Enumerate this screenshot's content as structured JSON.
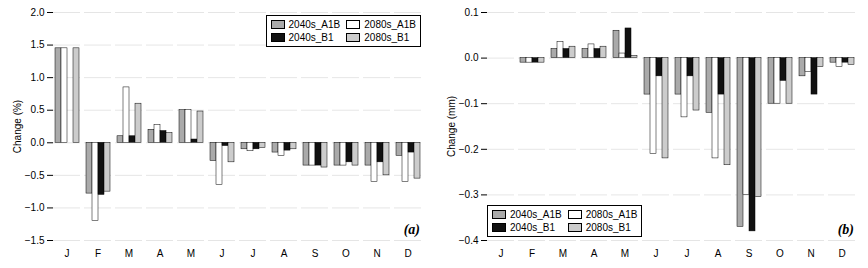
{
  "chart_data": [
    {
      "type": "bar",
      "ylabel": "Change (%)",
      "categories": [
        "J",
        "F",
        "M",
        "A",
        "M",
        "J",
        "J",
        "A",
        "S",
        "O",
        "N",
        "D"
      ],
      "series": [
        {
          "name": "2040s_A1B",
          "color": "#aaaaaa",
          "values": [
            1.45,
            -0.78,
            0.1,
            0.2,
            0.5,
            -0.28,
            -0.1,
            -0.15,
            -0.35,
            -0.35,
            -0.35,
            -0.2
          ]
        },
        {
          "name": "2080s_A1B",
          "color": "#ffffff",
          "values": [
            1.45,
            -1.2,
            0.85,
            0.27,
            0.5,
            -0.65,
            -0.13,
            -0.2,
            -0.35,
            -0.35,
            -0.6,
            -0.6
          ]
        },
        {
          "name": "2040s_B1",
          "color": "#111111",
          "values": [
            0.0,
            -0.8,
            0.1,
            0.18,
            0.05,
            -0.05,
            -0.1,
            -0.12,
            -0.35,
            -0.3,
            -0.3,
            -0.15
          ]
        },
        {
          "name": "2080s_B1",
          "color": "#cccccc",
          "values": [
            1.45,
            -0.75,
            0.6,
            0.15,
            0.48,
            -0.3,
            -0.08,
            -0.1,
            -0.38,
            -0.35,
            -0.5,
            -0.55
          ]
        }
      ],
      "ylim": [
        -1.5,
        2.0
      ],
      "yticks": [
        -1.5,
        {
          "value": -1.0,
          "label": "−1.0"
        },
        -0.5,
        {
          "value": 0.0,
          "label": "0.0"
        },
        0.5,
        {
          "value": 1.0,
          "label": "1.0"
        },
        1.5,
        {
          "value": 2.0,
          "label": "2.0"
        }
      ],
      "grid": true,
      "legend": "upper right",
      "annotations": [
        {
          "text": "(a)"
        }
      ]
    },
    {
      "type": "bar",
      "ylabel": "Change (mm)",
      "categories": [
        "J",
        "F",
        "M",
        "A",
        "M",
        "J",
        "J",
        "A",
        "S",
        "O",
        "N",
        "D"
      ],
      "series": [
        {
          "name": "2040s_A1B",
          "color": "#aaaaaa",
          "values": [
            0.0,
            -0.01,
            0.02,
            0.02,
            0.06,
            -0.08,
            -0.08,
            -0.12,
            -0.37,
            -0.1,
            -0.04,
            -0.01
          ]
        },
        {
          "name": "2080s_A1B",
          "color": "#ffffff",
          "values": [
            0.0,
            -0.01,
            0.035,
            0.03,
            0.01,
            -0.21,
            -0.13,
            -0.22,
            -0.3,
            -0.1,
            -0.03,
            -0.02
          ]
        },
        {
          "name": "2040s_B1",
          "color": "#111111",
          "values": [
            0.0,
            -0.01,
            0.02,
            0.02,
            0.065,
            -0.04,
            -0.04,
            -0.08,
            -0.38,
            -0.05,
            -0.08,
            -0.01
          ]
        },
        {
          "name": "2080s_B1",
          "color": "#cccccc",
          "values": [
            0.0,
            -0.01,
            0.025,
            0.025,
            0.005,
            -0.22,
            -0.115,
            -0.235,
            -0.305,
            -0.1,
            -0.02,
            -0.015
          ]
        }
      ],
      "ylim": [
        -0.4,
        0.1
      ],
      "yticks": [
        -0.4,
        -0.3,
        -0.2,
        -0.1,
        {
          "value": 0.0,
          "label": "0.0"
        },
        0.1
      ],
      "grid": true,
      "legend": "lower left",
      "annotations": [
        {
          "text": "(b)"
        }
      ]
    }
  ]
}
